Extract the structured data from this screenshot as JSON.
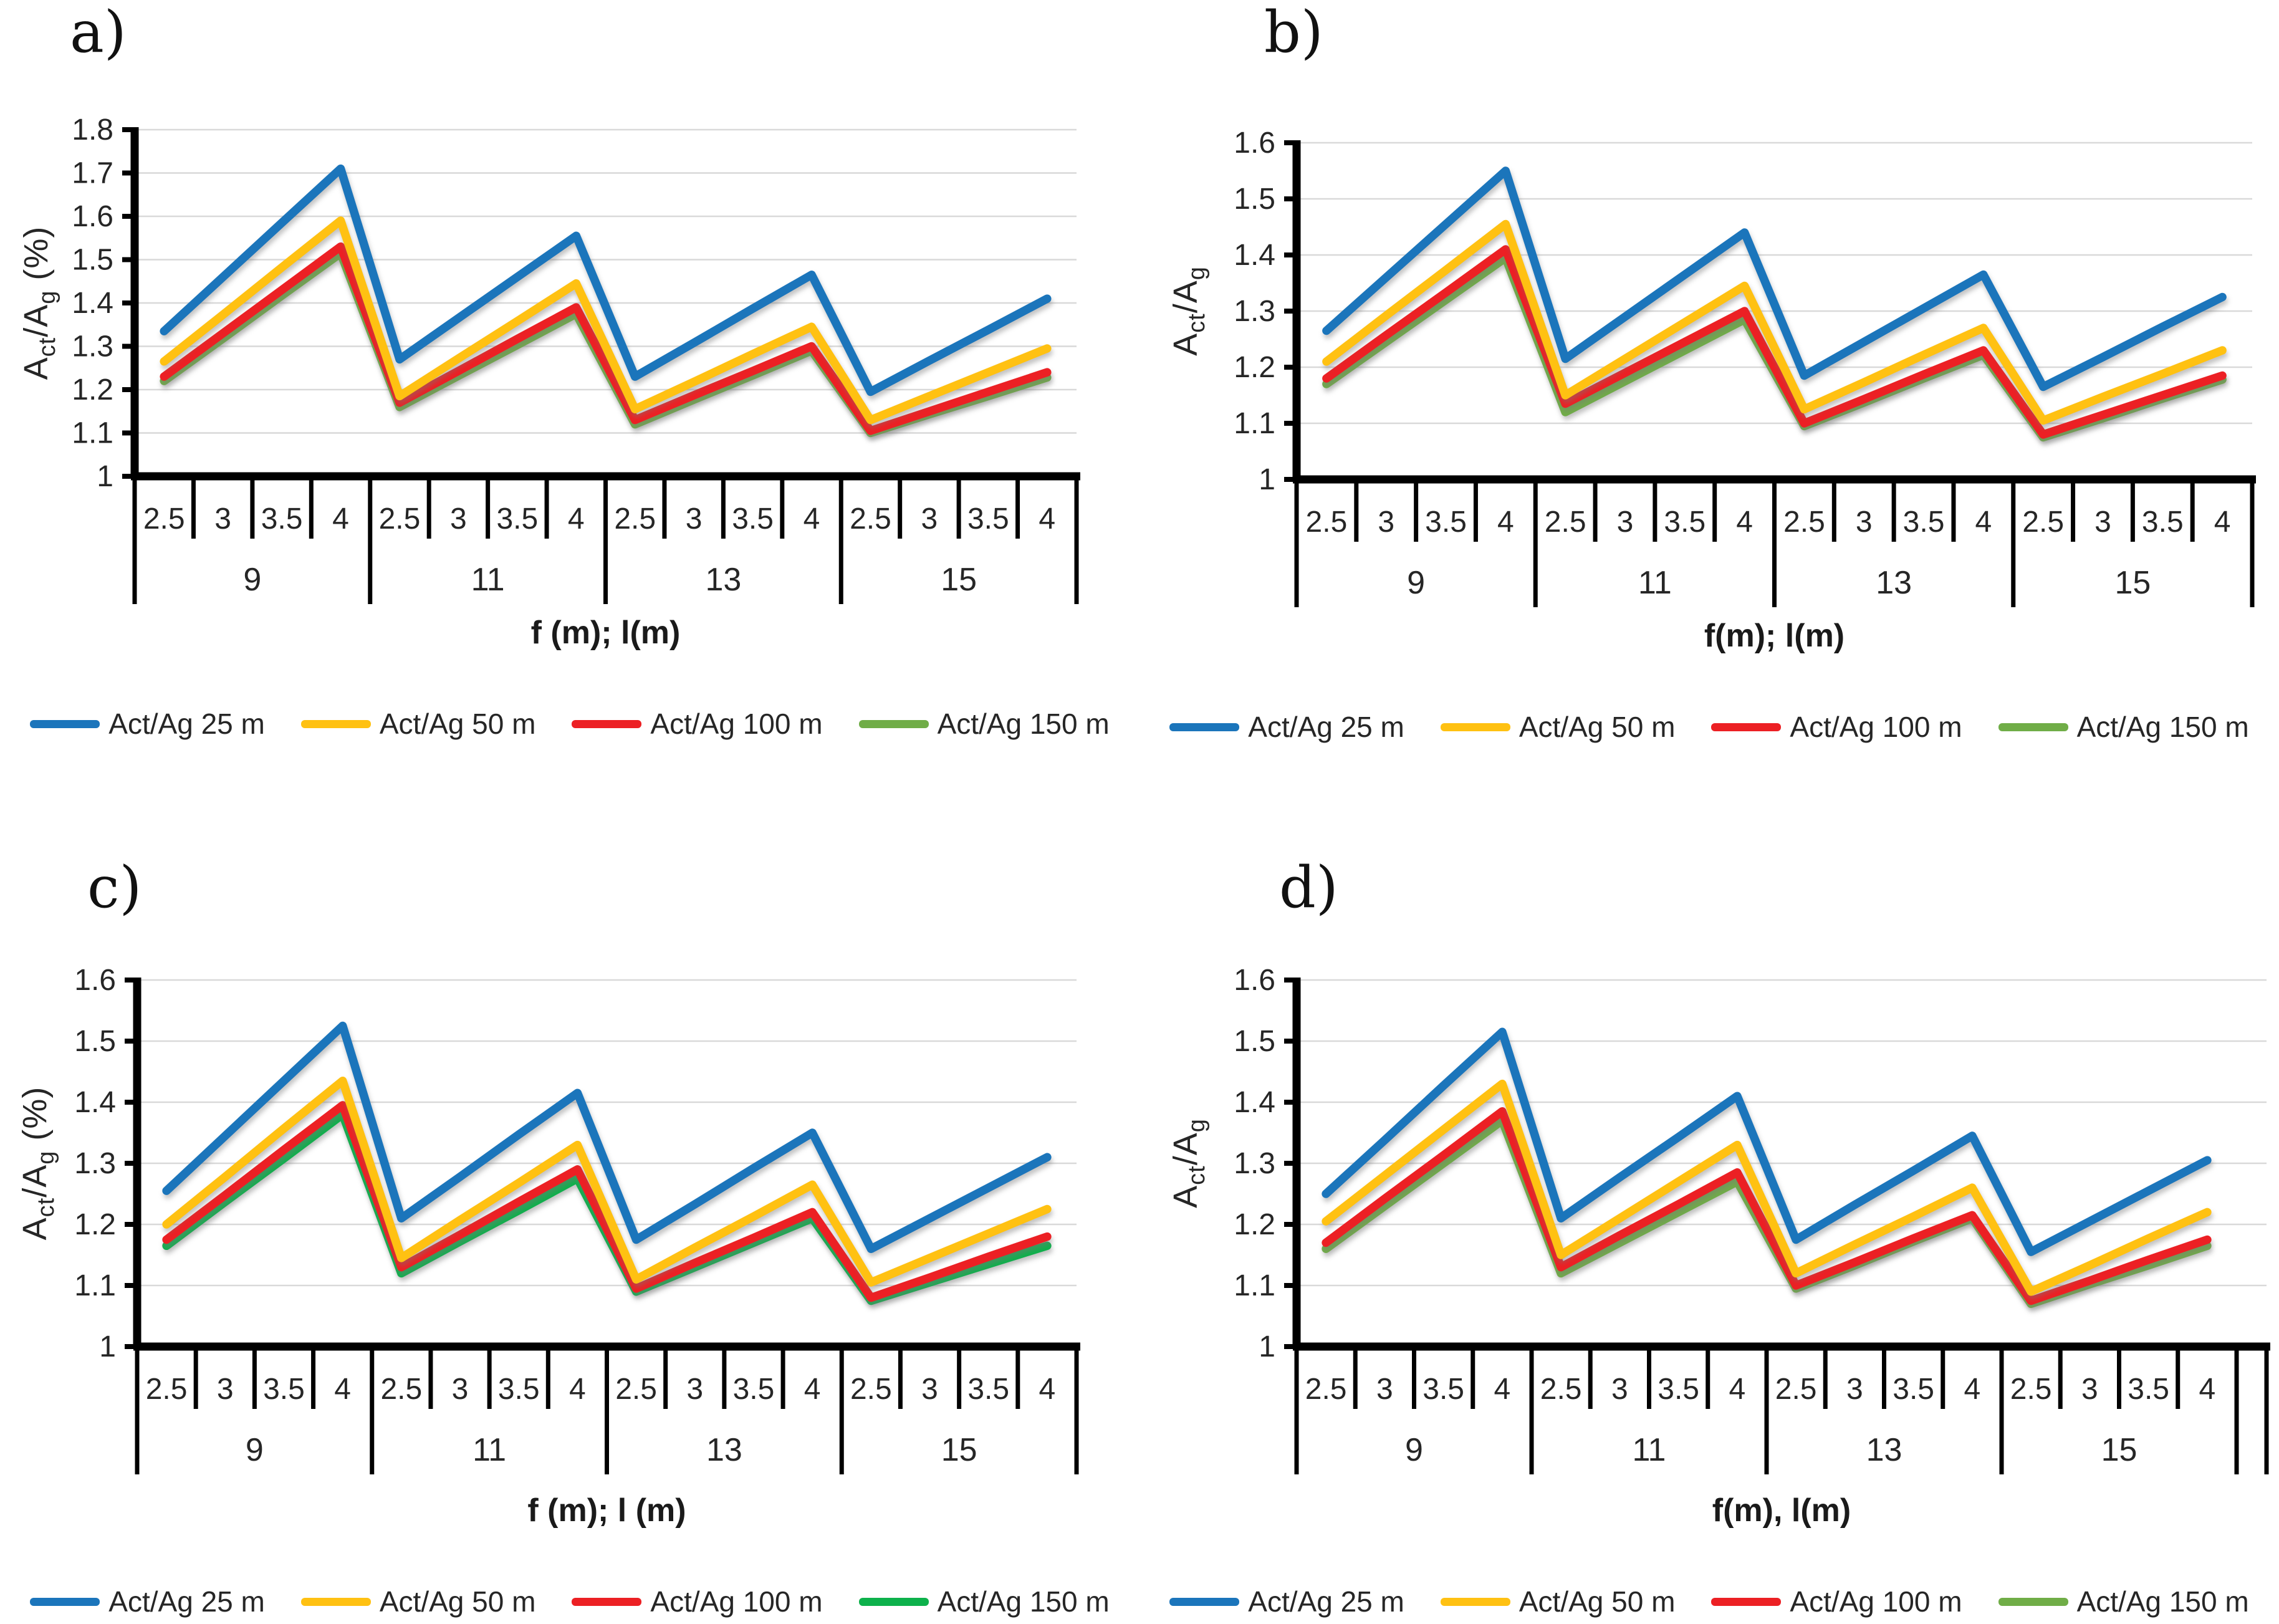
{
  "figure": {
    "background": "#ffffff",
    "panel_count": 4
  },
  "chart_data": [
    {
      "id": "a",
      "type": "line",
      "panel_label": "a)",
      "ylabel": "Act/Ag (%)",
      "ylabel_parts": [
        {
          "text": "A"
        },
        {
          "text": "ct",
          "sub": true
        },
        {
          "text": "/A"
        },
        {
          "text": "g",
          "sub": true
        },
        {
          "text": " (%)"
        }
      ],
      "xlabel": "f (m); l(m)",
      "ylim": [
        1,
        1.8
      ],
      "ytick_step": 0.1,
      "yticks": [
        "1",
        "1.1",
        "1.2",
        "1.3",
        "1.4",
        "1.5",
        "1.6",
        "1.7",
        "1.8"
      ],
      "grid": true,
      "legend_position": "bottom",
      "x_tick_labels": [
        "2.5",
        "3",
        "3.5",
        "4",
        "2.5",
        "3",
        "3.5",
        "4",
        "2.5",
        "3",
        "3.5",
        "4",
        "2.5",
        "3",
        "3.5",
        "4"
      ],
      "x_groups": [
        "9",
        "11",
        "13",
        "15"
      ],
      "series": [
        {
          "name": "Act/Ag 25 m",
          "color": "#1B75BB",
          "values": [
            1.335,
            1.46,
            1.585,
            1.71,
            1.27,
            1.365,
            1.46,
            1.555,
            1.23,
            1.308,
            1.387,
            1.465,
            1.195,
            1.267,
            1.338,
            1.41
          ]
        },
        {
          "name": "Act/Ag 50 m",
          "color": "#FFC112",
          "values": [
            1.265,
            1.373,
            1.482,
            1.59,
            1.185,
            1.272,
            1.358,
            1.445,
            1.155,
            1.218,
            1.282,
            1.345,
            1.13,
            1.185,
            1.24,
            1.295
          ]
        },
        {
          "name": "Act/Ag 100 m",
          "color": "#EC2024",
          "values": [
            1.23,
            1.33,
            1.43,
            1.53,
            1.17,
            1.243,
            1.317,
            1.39,
            1.13,
            1.187,
            1.243,
            1.3,
            1.105,
            1.15,
            1.195,
            1.24
          ]
        },
        {
          "name": "Act/Ag 150 m",
          "color": "#70AD47",
          "values": [
            1.22,
            1.318,
            1.417,
            1.515,
            1.16,
            1.232,
            1.303,
            1.375,
            1.12,
            1.177,
            1.233,
            1.29,
            1.1,
            1.143,
            1.185,
            1.228
          ]
        }
      ]
    },
    {
      "id": "b",
      "type": "line",
      "panel_label": "b)",
      "ylabel": "Act/Ag",
      "ylabel_parts": [
        {
          "text": "A"
        },
        {
          "text": "ct",
          "sub": true
        },
        {
          "text": "/A"
        },
        {
          "text": "g",
          "sub": true
        }
      ],
      "xlabel": "f(m); l(m)",
      "ylim": [
        1,
        1.6
      ],
      "ytick_step": 0.1,
      "yticks": [
        "1",
        "1.1",
        "1.2",
        "1.3",
        "1.4",
        "1.5",
        "1.6"
      ],
      "grid": true,
      "legend_position": "bottom",
      "x_tick_labels": [
        "2.5",
        "3",
        "3.5",
        "4",
        "2.5",
        "3",
        "3.5",
        "4",
        "2.5",
        "3",
        "3.5",
        "4",
        "2.5",
        "3",
        "3.5",
        "4"
      ],
      "x_groups": [
        "9",
        "11",
        "13",
        "15"
      ],
      "series": [
        {
          "name": "Act/Ag 25 m",
          "color": "#1B75BB",
          "values": [
            1.265,
            1.36,
            1.455,
            1.55,
            1.215,
            1.29,
            1.365,
            1.44,
            1.185,
            1.245,
            1.305,
            1.365,
            1.165,
            1.218,
            1.272,
            1.325
          ]
        },
        {
          "name": "Act/Ag 50 m",
          "color": "#FFC112",
          "values": [
            1.21,
            1.292,
            1.373,
            1.455,
            1.15,
            1.215,
            1.28,
            1.345,
            1.125,
            1.173,
            1.222,
            1.27,
            1.105,
            1.147,
            1.188,
            1.23
          ]
        },
        {
          "name": "Act/Ag 100 m",
          "color": "#EC2024",
          "values": [
            1.18,
            1.257,
            1.333,
            1.41,
            1.135,
            1.19,
            1.245,
            1.3,
            1.1,
            1.143,
            1.187,
            1.23,
            1.08,
            1.115,
            1.15,
            1.185
          ]
        },
        {
          "name": "Act/Ag 150 m",
          "color": "#70AD47",
          "values": [
            1.17,
            1.245,
            1.32,
            1.395,
            1.12,
            1.175,
            1.23,
            1.285,
            1.095,
            1.137,
            1.18,
            1.222,
            1.075,
            1.109,
            1.144,
            1.178
          ]
        }
      ]
    },
    {
      "id": "c",
      "type": "line",
      "panel_label": "c)",
      "ylabel": "Act/Ag (%)",
      "ylabel_parts": [
        {
          "text": "A"
        },
        {
          "text": "ct",
          "sub": true
        },
        {
          "text": "/A"
        },
        {
          "text": "g",
          "sub": true
        },
        {
          "text": " (%)"
        }
      ],
      "xlabel": "f (m);  l (m)",
      "ylim": [
        1,
        1.6
      ],
      "ytick_step": 0.1,
      "yticks": [
        "1",
        "1.1",
        "1.2",
        "1.3",
        "1.4",
        "1.5",
        "1.6"
      ],
      "grid": true,
      "legend_position": "bottom",
      "x_tick_labels": [
        "2.5",
        "3",
        "3.5",
        "4",
        "2.5",
        "3",
        "3.5",
        "4",
        "2.5",
        "3",
        "3.5",
        "4",
        "2.5",
        "3",
        "3.5",
        "4"
      ],
      "x_groups": [
        "9",
        "11",
        "13",
        "15"
      ],
      "series": [
        {
          "name": "Act/Ag 25 m",
          "color": "#1B75BB",
          "values": [
            1.255,
            1.345,
            1.435,
            1.525,
            1.21,
            1.278,
            1.347,
            1.415,
            1.175,
            1.233,
            1.292,
            1.35,
            1.16,
            1.21,
            1.26,
            1.31
          ]
        },
        {
          "name": "Act/Ag 50 m",
          "color": "#FFC112",
          "values": [
            1.2,
            1.278,
            1.357,
            1.435,
            1.145,
            1.207,
            1.268,
            1.33,
            1.11,
            1.162,
            1.213,
            1.265,
            1.105,
            1.145,
            1.185,
            1.225
          ]
        },
        {
          "name": "Act/Ag 100 m",
          "color": "#EC2024",
          "values": [
            1.175,
            1.248,
            1.322,
            1.395,
            1.13,
            1.183,
            1.237,
            1.29,
            1.095,
            1.137,
            1.178,
            1.22,
            1.08,
            1.113,
            1.147,
            1.18
          ]
        },
        {
          "name": "Act/Ag 150 m",
          "color": "#0DB14B",
          "values": [
            1.165,
            1.237,
            1.308,
            1.38,
            1.12,
            1.172,
            1.223,
            1.275,
            1.09,
            1.13,
            1.17,
            1.21,
            1.075,
            1.105,
            1.135,
            1.165
          ]
        }
      ]
    },
    {
      "id": "d",
      "type": "line",
      "panel_label": "d)",
      "ylabel": "Act/Ag",
      "ylabel_parts": [
        {
          "text": "A"
        },
        {
          "text": "ct",
          "sub": true
        },
        {
          "text": "/A"
        },
        {
          "text": "g",
          "sub": true
        }
      ],
      "xlabel": "f(m),  l(m)",
      "ylim": [
        1,
        1.6
      ],
      "ytick_step": 0.1,
      "yticks": [
        "1",
        "1.1",
        "1.2",
        "1.3",
        "1.4",
        "1.5",
        "1.6"
      ],
      "grid": true,
      "legend_position": "bottom",
      "x_tick_labels": [
        "2.5",
        "3",
        "3.5",
        "4",
        "2.5",
        "3",
        "3.5",
        "4",
        "2.5",
        "3",
        "3.5",
        "4",
        "2.5",
        "3",
        "3.5",
        "4"
      ],
      "x_groups": [
        "9",
        "11",
        "13",
        "15"
      ],
      "series": [
        {
          "name": "Act/Ag 25 m",
          "color": "#1B75BB",
          "values": [
            1.25,
            1.338,
            1.427,
            1.515,
            1.21,
            1.277,
            1.343,
            1.41,
            1.175,
            1.232,
            1.288,
            1.345,
            1.155,
            1.205,
            1.255,
            1.305
          ]
        },
        {
          "name": "Act/Ag 50 m",
          "color": "#FFC112",
          "values": [
            1.205,
            1.28,
            1.355,
            1.43,
            1.15,
            1.21,
            1.27,
            1.33,
            1.12,
            1.167,
            1.213,
            1.26,
            1.09,
            1.133,
            1.177,
            1.22
          ]
        },
        {
          "name": "Act/Ag 100 m",
          "color": "#EC2024",
          "values": [
            1.17,
            1.242,
            1.313,
            1.385,
            1.13,
            1.182,
            1.233,
            1.285,
            1.1,
            1.138,
            1.177,
            1.215,
            1.075,
            1.108,
            1.142,
            1.175
          ]
        },
        {
          "name": "Act/Ag 150 m",
          "color": "#70AD47",
          "values": [
            1.16,
            1.23,
            1.3,
            1.37,
            1.12,
            1.17,
            1.22,
            1.27,
            1.095,
            1.133,
            1.172,
            1.21,
            1.07,
            1.102,
            1.133,
            1.165
          ]
        }
      ]
    }
  ],
  "style": {
    "gridline_color": "#D9D9D9",
    "axis_color": "#000000",
    "text_color": "#262626"
  }
}
